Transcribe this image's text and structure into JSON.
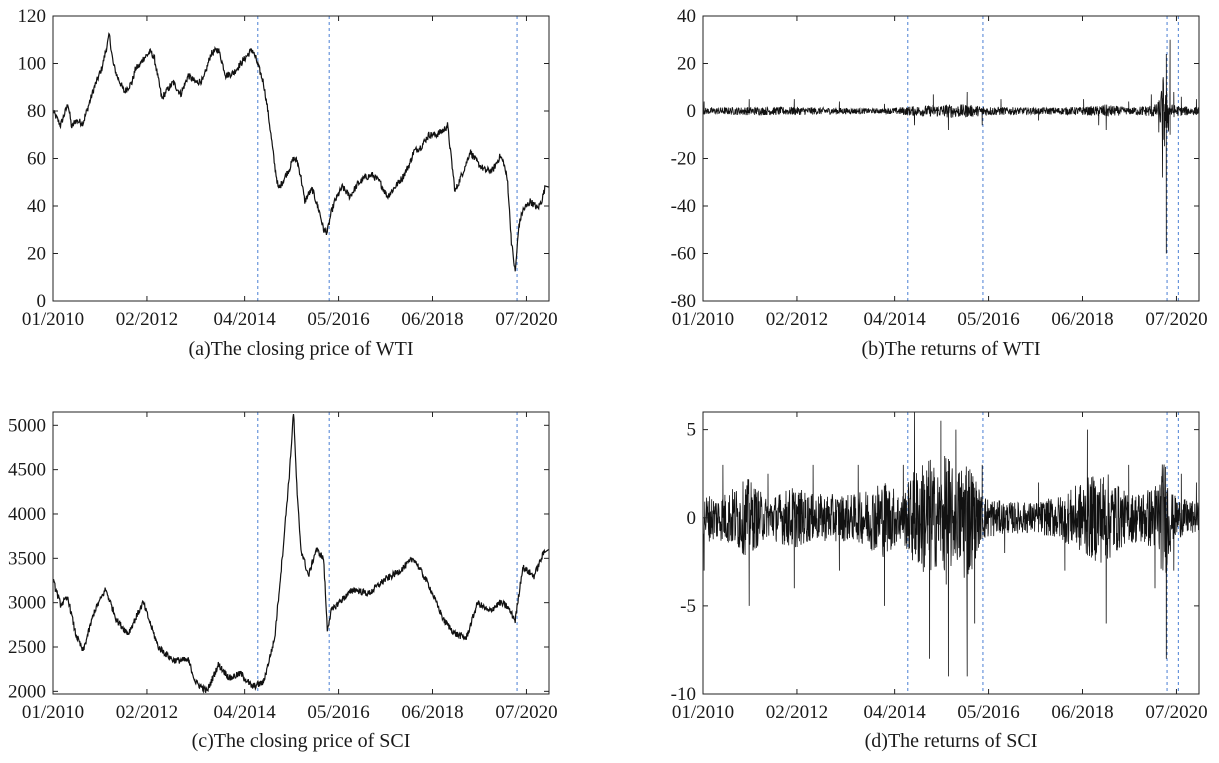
{
  "figure": {
    "style": {
      "line_color": "#111111",
      "event_line_color": "#4a7fd4",
      "axis_color": "#222222",
      "background": "#ffffff"
    }
  },
  "chart_data": [
    {
      "id": "a",
      "type": "line",
      "title": "(a)The closing price of WTI",
      "xlabel": "",
      "ylabel": "",
      "x_ticks": [
        "01/2010",
        "02/2012",
        "04/2014",
        "05/2016",
        "06/2018",
        "07/2020"
      ],
      "x_range": [
        "01/2010",
        "12/2020"
      ],
      "y_ticks": [
        0,
        20,
        40,
        60,
        80,
        100,
        120
      ],
      "ylim": [
        0,
        120
      ],
      "event_dates": [
        "07/2014",
        "02/2016",
        "04/2020"
      ],
      "series": [
        {
          "x": [
            "01/2010",
            "03/2010",
            "05/2010",
            "06/2010",
            "07/2010",
            "09/2010",
            "11/2010",
            "12/2010",
            "02/2011",
            "03/2011",
            "04/2011",
            "05/2011",
            "06/2011",
            "08/2011",
            "10/2011",
            "11/2011",
            "12/2011",
            "01/2012",
            "03/2012",
            "04/2012",
            "06/2012",
            "07/2012",
            "09/2012",
            "11/2012",
            "01/2013",
            "03/2013",
            "05/2013",
            "07/2013",
            "09/2013",
            "11/2013",
            "01/2014",
            "03/2014",
            "05/2014",
            "06/2014",
            "07/2014",
            "08/2014",
            "09/2014",
            "10/2014",
            "11/2014",
            "12/2014",
            "01/2015",
            "02/2015",
            "04/2015",
            "05/2015",
            "06/2015",
            "07/2015",
            "08/2015",
            "09/2015",
            "10/2015",
            "11/2015",
            "12/2015",
            "01/2016",
            "02/2016",
            "03/2016",
            "04/2016",
            "06/2016",
            "08/2016",
            "10/2016",
            "12/2016",
            "02/2017",
            "04/2017",
            "06/2017",
            "08/2017",
            "10/2017",
            "12/2017",
            "01/2018",
            "03/2018",
            "05/2018",
            "07/2018",
            "09/2018",
            "10/2018",
            "11/2018",
            "12/2018",
            "01/2019",
            "03/2019",
            "04/2019",
            "06/2019",
            "08/2019",
            "10/2019",
            "12/2019",
            "01/2020",
            "02/2020",
            "03/2020",
            "04/2020",
            "05/2020",
            "06/2020",
            "08/2020",
            "10/2020",
            "11/2020",
            "12/2020"
          ],
          "values": [
            80,
            74,
            83,
            73,
            76,
            75,
            85,
            90,
            98,
            105,
            112,
            100,
            95,
            88,
            92,
            98,
            99,
            102,
            105,
            102,
            85,
            88,
            92,
            87,
            95,
            92,
            93,
            104,
            106,
            95,
            96,
            100,
            104,
            106,
            102,
            97,
            92,
            82,
            70,
            57,
            47,
            50,
            56,
            60,
            59,
            52,
            42,
            45,
            47,
            42,
            37,
            30,
            29,
            37,
            42,
            48,
            44,
            49,
            52,
            53,
            50,
            44,
            48,
            52,
            58,
            63,
            65,
            70,
            70,
            72,
            74,
            60,
            46,
            50,
            58,
            63,
            58,
            55,
            55,
            61,
            58,
            50,
            25,
            12,
            32,
            38,
            42,
            39,
            42,
            48
          ]
        }
      ]
    },
    {
      "id": "b",
      "type": "line",
      "title": "(b)The returns of WTI",
      "xlabel": "",
      "ylabel": "",
      "x_ticks": [
        "01/2010",
        "02/2012",
        "04/2014",
        "05/2016",
        "06/2018",
        "07/2020"
      ],
      "x_range": [
        "01/2010",
        "12/2020"
      ],
      "y_ticks": [
        -80,
        -60,
        -40,
        -20,
        0,
        20,
        40
      ],
      "ylim": [
        -80,
        40
      ],
      "event_dates": [
        "07/2014",
        "03/2016",
        "04/2020",
        "07/2020"
      ],
      "series": [
        {
          "x": [
            "01/2010",
            "01/2011",
            "01/2012",
            "01/2013",
            "01/2014",
            "09/2014",
            "02/2015",
            "06/2015",
            "11/2015",
            "03/2016",
            "08/2016",
            "06/2017",
            "06/2018",
            "10/2018",
            "12/2018",
            "06/2019",
            "12/2019",
            "02/2020",
            "03/2020",
            "04/2020",
            "04/2020",
            "05/2020",
            "05/2020",
            "06/2020",
            "08/2020",
            "12/2020"
          ],
          "values": [
            4,
            5,
            5,
            4,
            3,
            -6,
            7,
            -8,
            8,
            -6,
            5,
            -4,
            5,
            -6,
            -8,
            4,
            7,
            -9,
            -28,
            -60,
            24,
            30,
            -10,
            8,
            6,
            5
          ]
        }
      ]
    },
    {
      "id": "c",
      "type": "line",
      "title": "(c)The closing price of SCI",
      "xlabel": "",
      "ylabel": "",
      "x_ticks": [
        "01/2010",
        "02/2012",
        "04/2014",
        "05/2016",
        "06/2018",
        "07/2020"
      ],
      "x_range": [
        "01/2010",
        "12/2020"
      ],
      "y_ticks": [
        2000,
        2500,
        3000,
        3500,
        4000,
        4500,
        5000
      ],
      "ylim": [
        1970,
        5150
      ],
      "event_dates": [
        "07/2014",
        "02/2016",
        "04/2020"
      ],
      "series": [
        {
          "x": [
            "01/2010",
            "03/2010",
            "05/2010",
            "07/2010",
            "09/2010",
            "12/2010",
            "03/2011",
            "06/2011",
            "09/2011",
            "01/2012",
            "05/2012",
            "09/2012",
            "01/2013",
            "03/2013",
            "06/2013",
            "09/2013",
            "12/2013",
            "03/2014",
            "06/2014",
            "09/2014",
            "12/2014",
            "02/2015",
            "04/2015",
            "05/2015",
            "06/2015",
            "07/2015",
            "09/2015",
            "11/2015",
            "01/2016",
            "02/2016",
            "03/2016",
            "05/2016",
            "09/2016",
            "01/2017",
            "05/2017",
            "09/2017",
            "01/2018",
            "05/2018",
            "09/2018",
            "12/2018",
            "03/2019",
            "06/2019",
            "09/2019",
            "12/2019",
            "02/2020",
            "04/2020",
            "06/2020",
            "09/2020",
            "12/2020"
          ],
          "values": [
            3250,
            2980,
            3050,
            2650,
            2450,
            2900,
            3150,
            2800,
            2650,
            3000,
            2500,
            2350,
            2350,
            2100,
            2000,
            2300,
            2150,
            2200,
            2050,
            2100,
            2600,
            3500,
            4500,
            5150,
            4200,
            3600,
            3300,
            3600,
            3500,
            2700,
            2900,
            3000,
            3150,
            3100,
            3250,
            3350,
            3500,
            3200,
            2800,
            2650,
            2600,
            3000,
            2900,
            3000,
            2950,
            2800,
            3400,
            3300,
            3600
          ]
        }
      ]
    },
    {
      "id": "d",
      "type": "line",
      "title": "(d)The returns of SCI",
      "xlabel": "",
      "ylabel": "",
      "x_ticks": [
        "01/2010",
        "02/2012",
        "04/2014",
        "05/2016",
        "06/2018",
        "07/2020"
      ],
      "x_range": [
        "01/2010",
        "12/2020"
      ],
      "y_ticks": [
        -10,
        -5,
        0,
        5
      ],
      "ylim": [
        -10,
        6
      ],
      "event_dates": [
        "07/2014",
        "03/2016",
        "04/2020",
        "07/2020"
      ],
      "series": [
        {
          "x": [
            "01/2010",
            "06/2010",
            "01/2011",
            "06/2011",
            "01/2012",
            "06/2012",
            "01/2013",
            "06/2013",
            "01/2014",
            "06/2014",
            "09/2014",
            "01/2015",
            "04/2015",
            "06/2015",
            "08/2015",
            "11/2015",
            "01/2016",
            "03/2016",
            "09/2016",
            "06/2017",
            "01/2018",
            "07/2018",
            "12/2018",
            "06/2019",
            "01/2020",
            "04/2020",
            "06/2020",
            "08/2020",
            "12/2020"
          ],
          "values": [
            -3,
            3,
            -5,
            2.5,
            -4,
            3,
            -3,
            3,
            -5,
            3,
            6,
            -8,
            5.5,
            -9,
            5,
            -9,
            -6,
            3,
            -2,
            2,
            -3,
            5,
            -6,
            3,
            -4,
            -8,
            -3,
            2.5,
            2
          ]
        }
      ]
    }
  ]
}
